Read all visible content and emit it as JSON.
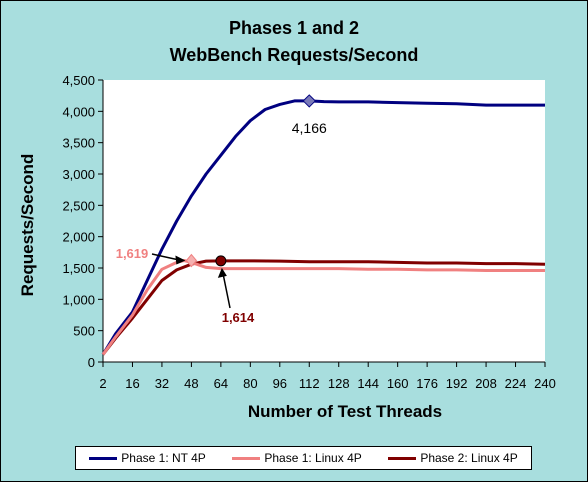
{
  "chart_data": {
    "type": "line",
    "title": [
      "Phases 1 and 2",
      "WebBench Requests/Second"
    ],
    "xlabel": "Number of Test Threads",
    "ylabel": "Requests/Second",
    "ylim": [
      0,
      4500
    ],
    "y_ticks": [
      "0",
      "500",
      "1,000",
      "1,500",
      "2,000",
      "2,500",
      "3,000",
      "3,500",
      "4,000",
      "4,500"
    ],
    "y_tick_values": [
      0,
      500,
      1000,
      1500,
      2000,
      2500,
      3000,
      3500,
      4000,
      4500
    ],
    "x_tick_labels": [
      "2",
      "16",
      "32",
      "48",
      "64",
      "80",
      "96",
      "112",
      "128",
      "144",
      "160",
      "176",
      "192",
      "208",
      "224",
      "240"
    ],
    "grid": false,
    "legend_position": "bottom",
    "plot_background": "#ffffff",
    "chart_background": "#a8dede",
    "series": [
      {
        "name": "Phase 1: NT 4P",
        "color": "#000080",
        "points": [
          [
            2,
            120
          ],
          [
            8,
            450
          ],
          [
            16,
            800
          ],
          [
            24,
            1300
          ],
          [
            32,
            1800
          ],
          [
            40,
            2250
          ],
          [
            48,
            2650
          ],
          [
            56,
            3000
          ],
          [
            64,
            3300
          ],
          [
            72,
            3600
          ],
          [
            80,
            3850
          ],
          [
            88,
            4030
          ],
          [
            96,
            4110
          ],
          [
            104,
            4166
          ],
          [
            112,
            4166
          ],
          [
            120,
            4155
          ],
          [
            128,
            4150
          ],
          [
            144,
            4150
          ],
          [
            160,
            4140
          ],
          [
            176,
            4130
          ],
          [
            192,
            4120
          ],
          [
            208,
            4100
          ],
          [
            224,
            4100
          ],
          [
            240,
            4100
          ]
        ]
      },
      {
        "name": "Phase 1: Linux 4P",
        "color": "#f08080",
        "points": [
          [
            2,
            120
          ],
          [
            8,
            400
          ],
          [
            16,
            750
          ],
          [
            24,
            1150
          ],
          [
            32,
            1480
          ],
          [
            40,
            1590
          ],
          [
            44,
            1619
          ],
          [
            48,
            1590
          ],
          [
            56,
            1510
          ],
          [
            64,
            1490
          ],
          [
            80,
            1490
          ],
          [
            96,
            1490
          ],
          [
            112,
            1490
          ],
          [
            128,
            1490
          ],
          [
            144,
            1480
          ],
          [
            160,
            1480
          ],
          [
            176,
            1470
          ],
          [
            192,
            1470
          ],
          [
            208,
            1460
          ],
          [
            224,
            1460
          ],
          [
            240,
            1460
          ]
        ]
      },
      {
        "name": "Phase 2: Linux 4P",
        "color": "#800000",
        "points": [
          [
            2,
            120
          ],
          [
            8,
            380
          ],
          [
            16,
            700
          ],
          [
            24,
            1000
          ],
          [
            32,
            1300
          ],
          [
            40,
            1470
          ],
          [
            48,
            1560
          ],
          [
            56,
            1610
          ],
          [
            64,
            1614
          ],
          [
            72,
            1614
          ],
          [
            80,
            1614
          ],
          [
            96,
            1610
          ],
          [
            112,
            1600
          ],
          [
            128,
            1600
          ],
          [
            144,
            1600
          ],
          [
            160,
            1590
          ],
          [
            176,
            1580
          ],
          [
            192,
            1580
          ],
          [
            208,
            1570
          ],
          [
            224,
            1570
          ],
          [
            240,
            1560
          ]
        ]
      }
    ],
    "annotations": [
      {
        "text": "4,166",
        "series": 0,
        "x": 112,
        "y": 4166,
        "color": "#000000"
      },
      {
        "text": "1,619",
        "series": 1,
        "x": 48,
        "y": 1619,
        "color": "#f08080"
      },
      {
        "text": "1,614",
        "series": 2,
        "x": 64,
        "y": 1614,
        "color": "#800000"
      }
    ]
  }
}
